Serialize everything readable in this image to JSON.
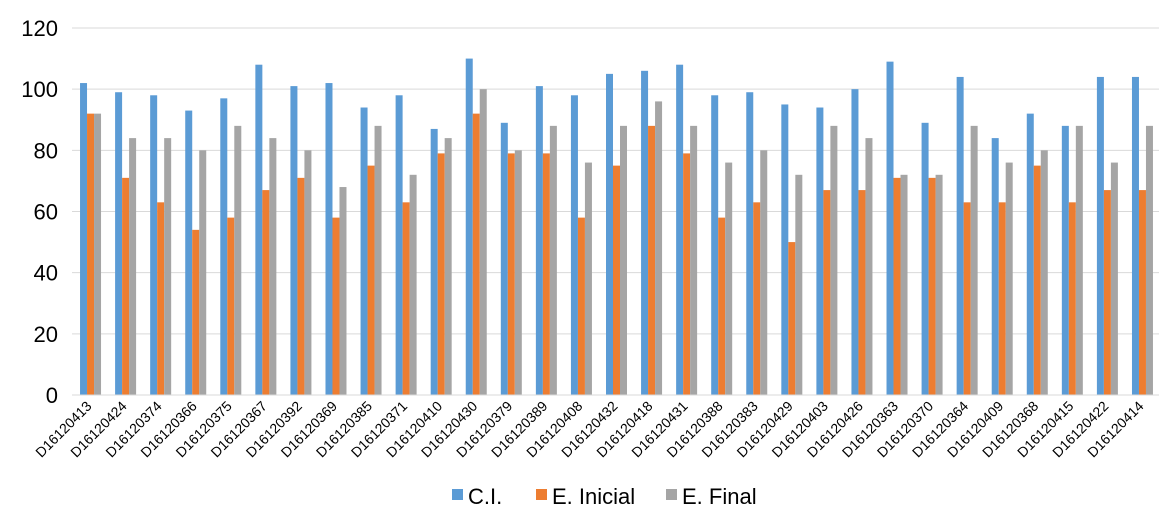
{
  "chart_data": {
    "type": "bar",
    "title": "",
    "xlabel": "",
    "ylabel": "",
    "ylim": [
      0,
      120
    ],
    "yticks": [
      0,
      20,
      40,
      60,
      80,
      100,
      120
    ],
    "grid": "horizontal",
    "legend": "bottom",
    "categories": [
      "D16120413",
      "D16120424",
      "D16120374",
      "D16120366",
      "D16120375",
      "D16120367",
      "D16120392",
      "D16120369",
      "D16120385",
      "D16120371",
      "D16120410",
      "D16120430",
      "D16120379",
      "D16120389",
      "D16120408",
      "D16120432",
      "D16120418",
      "D16120431",
      "D16120388",
      "D16120383",
      "D16120429",
      "D16120403",
      "D16120426",
      "D16120363",
      "D16120370",
      "D16120364",
      "D16120409",
      "D16120368",
      "D16120415",
      "D16120422",
      "D16120414"
    ],
    "series": [
      {
        "name": "C.I.",
        "color": "#5B9BD5",
        "values": [
          102,
          99,
          98,
          93,
          97,
          108,
          101,
          102,
          94,
          98,
          87,
          110,
          89,
          101,
          98,
          105,
          106,
          108,
          98,
          99,
          95,
          94,
          100,
          109,
          89,
          104,
          84,
          92,
          88,
          104,
          104
        ]
      },
      {
        "name": "E. Inicial",
        "color": "#ED7D31",
        "values": [
          92,
          71,
          63,
          54,
          58,
          67,
          71,
          58,
          75,
          63,
          79,
          92,
          79,
          79,
          58,
          75,
          88,
          79,
          58,
          63,
          50,
          67,
          67,
          71,
          71,
          63,
          63,
          75,
          63,
          67,
          67
        ]
      },
      {
        "name": "E. Final",
        "color": "#A5A5A5",
        "values": [
          92,
          84,
          84,
          80,
          88,
          84,
          80,
          68,
          88,
          72,
          84,
          100,
          80,
          88,
          76,
          88,
          96,
          88,
          76,
          80,
          72,
          88,
          84,
          72,
          72,
          88,
          76,
          80,
          88,
          76,
          88
        ]
      }
    ]
  }
}
